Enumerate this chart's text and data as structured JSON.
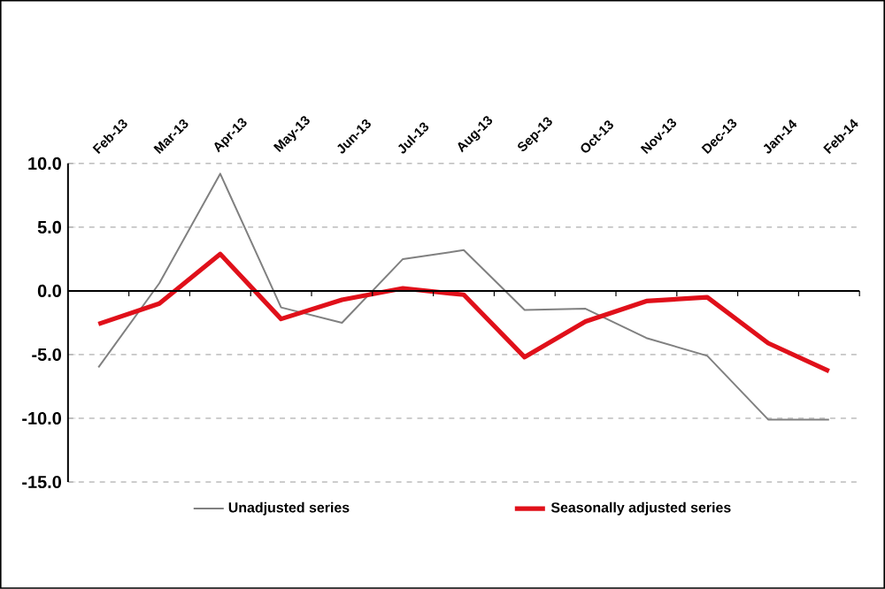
{
  "chart_data": {
    "type": "line",
    "categories": [
      "Feb-13",
      "Mar-13",
      "Apr-13",
      "May-13",
      "Jun-13",
      "Jul-13",
      "Aug-13",
      "Sep-13",
      "Oct-13",
      "Nov-13",
      "Dec-13",
      "Jan-14",
      "Feb-14"
    ],
    "series": [
      {
        "name": "Unadjusted series",
        "color": "#808080",
        "values": [
          -6.0,
          0.6,
          9.2,
          -1.3,
          -2.5,
          2.5,
          3.2,
          -1.5,
          -1.4,
          -3.7,
          -5.1,
          -10.1,
          -10.1
        ]
      },
      {
        "name": "Seasonally adjusted series",
        "color": "#e0101a",
        "values": [
          -2.6,
          -1.0,
          2.9,
          -2.2,
          -0.7,
          0.2,
          -0.3,
          -5.2,
          -2.4,
          -0.8,
          -0.5,
          -4.1,
          -6.3
        ]
      }
    ],
    "ylim": [
      -15,
      10
    ],
    "yticks": [
      {
        "value": -15,
        "label": "-15.0"
      },
      {
        "value": -10,
        "label": "-10.0"
      },
      {
        "value": -5,
        "label": "-5.0"
      },
      {
        "value": 0,
        "label": "0.0"
      },
      {
        "value": 5,
        "label": "5.0"
      },
      {
        "value": 10,
        "label": "10.0"
      }
    ],
    "grid": "y",
    "legend": "bottom",
    "marker": "none",
    "line_style": "solid"
  }
}
